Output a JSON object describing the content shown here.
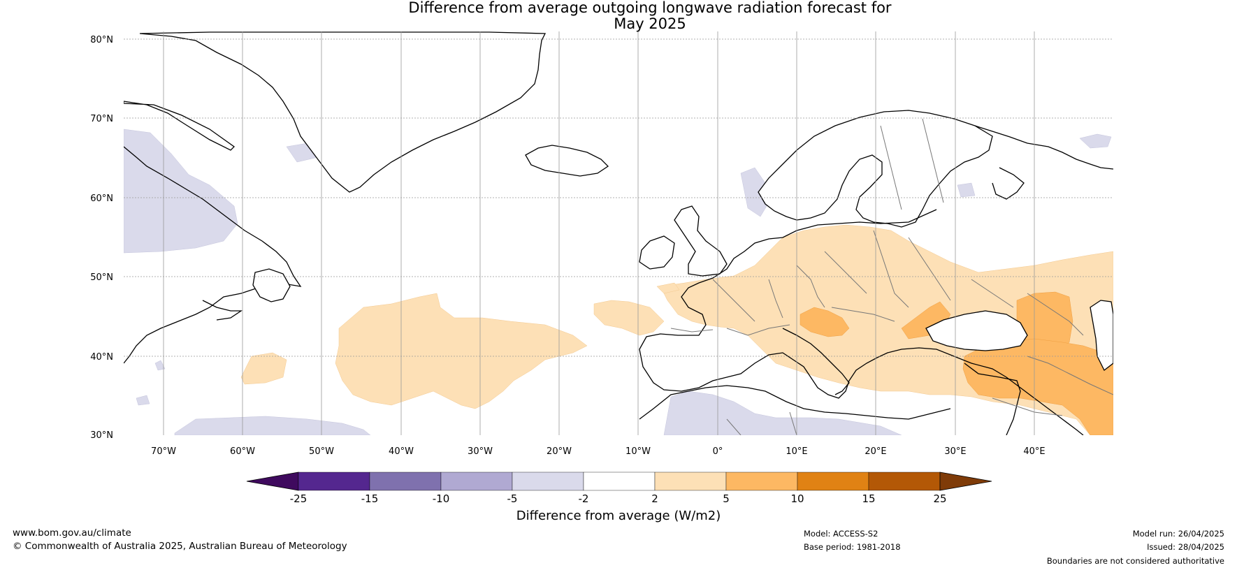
{
  "title": {
    "line1": "Difference from average outgoing longwave radiation forecast for",
    "line2": "May 2025"
  },
  "map": {
    "lon_labels": [
      "70°W",
      "60°W",
      "50°W",
      "40°W",
      "30°W",
      "20°W",
      "10°W",
      "0°",
      "10°E",
      "20°E",
      "30°E",
      "40°E"
    ],
    "lat_labels": [
      "80°N",
      "70°N",
      "60°N",
      "50°N",
      "40°N",
      "30°N"
    ],
    "lon_range": [
      -75,
      50
    ],
    "lat_range": [
      30,
      81
    ],
    "projection": "plate-carree",
    "gridlines": true
  },
  "colorbar": {
    "tick_labels": [
      "-25",
      "-15",
      "-10",
      "-5",
      "-2",
      "2",
      "5",
      "10",
      "15",
      "25"
    ],
    "colors": [
      "#3f0a5e",
      "#54278f",
      "#7f71ae",
      "#b0a9d2",
      "#dadaeb",
      "#ffffff",
      "#fde0b6",
      "#fdb863",
      "#e08214",
      "#b35806",
      "#7f3b08"
    ],
    "title": "Difference from average (W/m2)",
    "extend": "both"
  },
  "footer": {
    "website": "www.bom.gov.au/climate",
    "copyright": "© Commonwealth of Australia 2025, Australian Bureau of Meteorology",
    "model": "Model: ACCESS-S2",
    "base_period": "Base period: 1981-2018",
    "model_run": "Model run: 26/04/2025",
    "issued": "Issued: 28/04/2025",
    "disclaimer": "Boundaries are not considered authoritative"
  }
}
